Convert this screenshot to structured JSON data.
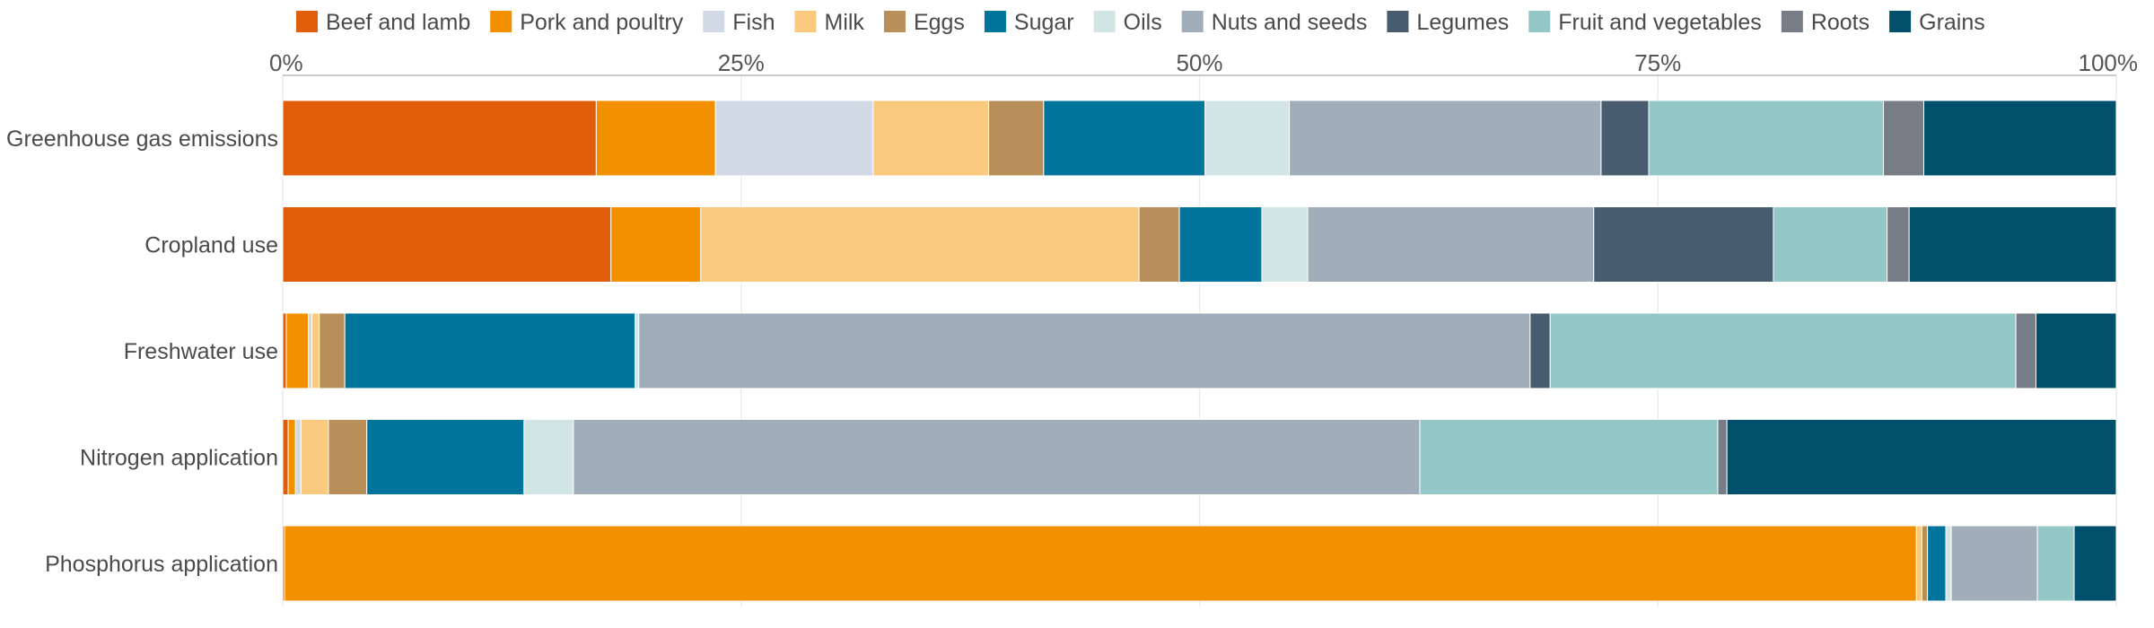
{
  "chart_data": {
    "type": "bar",
    "orientation": "horizontal",
    "stacked": true,
    "normalized": true,
    "legend_position": "top",
    "grid": true,
    "xlim": [
      0,
      100
    ],
    "x_ticks": [
      "0%",
      "25%",
      "50%",
      "75%",
      "100%"
    ],
    "categories": [
      "Greenhouse gas emissions",
      "Cropland use",
      "Freshwater use",
      "Nitrogen application",
      "Phosphorus application"
    ],
    "series": [
      {
        "name": "Beef and lamb",
        "color": "#e05e0a",
        "values": [
          17.1,
          17.9,
          0.2,
          0.3,
          0.1
        ]
      },
      {
        "name": "Pork and poultry",
        "color": "#f29000",
        "values": [
          6.5,
          4.9,
          1.2,
          0.4,
          89.0
        ]
      },
      {
        "name": "Fish",
        "color": "#d0d9e4",
        "values": [
          8.6,
          0.0,
          0.2,
          0.3,
          0.0
        ]
      },
      {
        "name": "Milk",
        "color": "#f9c97e",
        "values": [
          6.3,
          23.9,
          0.4,
          1.5,
          0.3
        ]
      },
      {
        "name": "Eggs",
        "color": "#b88f58",
        "values": [
          3.0,
          2.2,
          1.4,
          2.1,
          0.3
        ]
      },
      {
        "name": "Sugar",
        "color": "#00749a",
        "values": [
          8.8,
          4.5,
          15.9,
          8.6,
          1.0
        ]
      },
      {
        "name": "Oils",
        "color": "#d1e6e4",
        "values": [
          4.6,
          2.5,
          0.2,
          2.7,
          0.3
        ]
      },
      {
        "name": "Nuts and seeds",
        "color": "#a1adb9",
        "values": [
          17.0,
          15.6,
          48.8,
          46.3,
          4.7
        ]
      },
      {
        "name": "Legumes",
        "color": "#475c6e",
        "values": [
          2.6,
          9.8,
          1.1,
          0.0,
          0.0
        ]
      },
      {
        "name": "Fruit and vegetables",
        "color": "#93c8c6",
        "values": [
          12.8,
          6.2,
          25.5,
          16.3,
          2.0
        ]
      },
      {
        "name": "Roots",
        "color": "#767d86",
        "values": [
          2.2,
          1.2,
          1.1,
          0.5,
          0.0
        ]
      },
      {
        "name": "Grains",
        "color": "#004f6b",
        "values": [
          10.5,
          11.3,
          4.4,
          21.3,
          2.3
        ]
      }
    ]
  }
}
